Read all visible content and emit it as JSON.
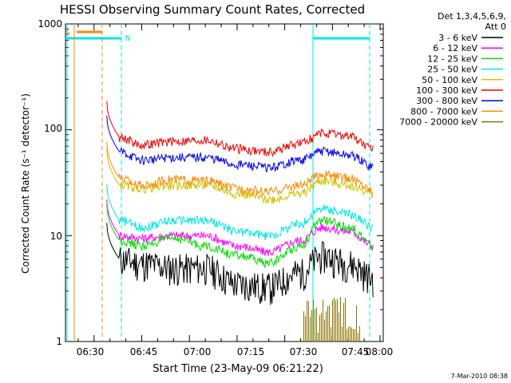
{
  "chart_data": {
    "type": "line",
    "title": "HESSI Observing Summary Count Rates, Corrected",
    "xlabel": "Start Time (23-May-09 06:21:22)",
    "ylabel": "Corrected Count Rate (s⁻¹ detector⁻¹)",
    "yscale": "log",
    "ylim": [
      1,
      1000
    ],
    "xlim": [
      "06:21",
      "08:01"
    ],
    "x_ticks": [
      "06:30",
      "06:45",
      "07:00",
      "07:15",
      "07:30",
      "07:45",
      "08:00"
    ],
    "y_ticks": [
      "1",
      "10",
      "100",
      "1000"
    ],
    "legend": {
      "header": [
        "Det 1,3,4,5,6,9,",
        "Att 0"
      ],
      "placement": "right"
    },
    "series": [
      {
        "name": "3 - 6 keV",
        "color": "#000000",
        "x": [
          "06:38",
          "06:45",
          "06:55",
          "07:05",
          "07:15",
          "07:25",
          "07:35",
          "07:42",
          "07:50",
          "07:58"
        ],
        "y": [
          6,
          5.5,
          5,
          5,
          3.5,
          3.3,
          4.5,
          6.5,
          5.5,
          4
        ]
      },
      {
        "name": "6 - 12 keV",
        "color": "#ff00ff",
        "x": [
          "06:38",
          "06:45",
          "06:55",
          "07:05",
          "07:15",
          "07:25",
          "07:35",
          "07:42",
          "07:50",
          "07:58"
        ],
        "y": [
          10,
          9.5,
          10,
          10,
          8,
          7,
          9,
          12,
          11,
          8
        ]
      },
      {
        "name": "12 - 25 keV",
        "color": "#00dd00",
        "x": [
          "06:38",
          "06:45",
          "06:55",
          "07:05",
          "07:15",
          "07:25",
          "07:35",
          "07:42",
          "07:50",
          "07:58"
        ],
        "y": [
          9,
          8,
          9.5,
          8,
          6.5,
          5.5,
          8,
          14,
          12,
          8
        ]
      },
      {
        "name": "25 - 50 keV",
        "color": "#00e5e5",
        "x": [
          "06:38",
          "06:45",
          "06:55",
          "07:05",
          "07:15",
          "07:25",
          "07:35",
          "07:42",
          "07:50",
          "07:58"
        ],
        "y": [
          14,
          12,
          14,
          14,
          11,
          10,
          13,
          18,
          16,
          12
        ]
      },
      {
        "name": "50 - 100 keV",
        "color": "#d4c000",
        "x": [
          "06:38",
          "06:45",
          "06:55",
          "07:05",
          "07:15",
          "07:25",
          "07:35",
          "07:42",
          "07:50",
          "07:58"
        ],
        "y": [
          30,
          28,
          30,
          30,
          25,
          22,
          25,
          33,
          30,
          25
        ]
      },
      {
        "name": "100 - 300 keV",
        "color": "#ee0000",
        "x": [
          "06:38",
          "06:45",
          "06:55",
          "07:05",
          "07:15",
          "07:25",
          "07:35",
          "07:42",
          "07:50",
          "07:58"
        ],
        "y": [
          85,
          72,
          78,
          80,
          66,
          62,
          75,
          92,
          88,
          65
        ]
      },
      {
        "name": "300 - 800 keV",
        "color": "#0000ee",
        "x": [
          "06:38",
          "06:45",
          "06:55",
          "07:05",
          "07:15",
          "07:25",
          "07:35",
          "07:42",
          "07:50",
          "07:58"
        ],
        "y": [
          62,
          52,
          55,
          55,
          47,
          44,
          52,
          63,
          58,
          45
        ]
      },
      {
        "name": "800 - 7000 keV",
        "color": "#ff8800",
        "x": [
          "06:38",
          "06:45",
          "06:55",
          "07:05",
          "07:15",
          "07:25",
          "07:35",
          "07:42",
          "07:50",
          "07:58"
        ],
        "y": [
          35,
          30,
          34,
          33,
          28,
          26,
          30,
          38,
          35,
          27
        ]
      },
      {
        "name": "7000 - 20000 keV",
        "color": "#8b7300",
        "x": [
          "07:36",
          "07:40",
          "07:45",
          "07:50",
          "07:54"
        ],
        "y": [
          2,
          2.2,
          2.3,
          2,
          2
        ]
      }
    ],
    "annotations": {
      "attenuator_label": "S",
      "night_label": "N"
    }
  },
  "footer": {
    "date_stamp": "7-Mar-2010 08:38"
  }
}
